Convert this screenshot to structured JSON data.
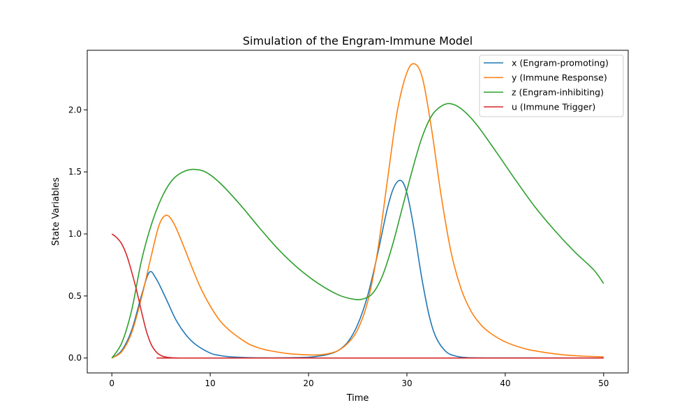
{
  "chart_data": {
    "type": "line",
    "title": "Simulation of the Engram-Immune Model",
    "xlabel": "Time",
    "ylabel": "State Variables",
    "xlim": [
      -2.5,
      52.5
    ],
    "ylim": [
      -0.12,
      2.48
    ],
    "xticks": [
      0,
      10,
      20,
      30,
      40,
      50
    ],
    "xtick_labels": [
      "0",
      "10",
      "20",
      "30",
      "40",
      "50"
    ],
    "yticks": [
      0.0,
      0.5,
      1.0,
      1.5,
      2.0
    ],
    "ytick_labels": [
      "0.0",
      "0.5",
      "1.0",
      "1.5",
      "2.0"
    ],
    "grid": false,
    "legend_position": "top-right",
    "series": [
      {
        "name": "x (Engram-promoting)",
        "color": "#1f77b4",
        "x": [
          0,
          1,
          2,
          3,
          3.8,
          4.5,
          5.5,
          6.5,
          7.5,
          8.5,
          10,
          11,
          12,
          14,
          16,
          18,
          20,
          21,
          22,
          23,
          24,
          25,
          26,
          27,
          28,
          28.7,
          29.4,
          30,
          30.7,
          31.5,
          32.3,
          33,
          34,
          35,
          36,
          38,
          50
        ],
        "y": [
          0.0,
          0.06,
          0.22,
          0.5,
          0.69,
          0.64,
          0.48,
          0.31,
          0.19,
          0.11,
          0.04,
          0.02,
          0.01,
          0.003,
          0.001,
          0.002,
          0.006,
          0.015,
          0.03,
          0.06,
          0.13,
          0.27,
          0.5,
          0.83,
          1.2,
          1.38,
          1.43,
          1.33,
          1.05,
          0.65,
          0.33,
          0.16,
          0.05,
          0.015,
          0.004,
          0.001,
          0.0
        ]
      },
      {
        "name": "y (Immune Response)",
        "color": "#ff7f0e",
        "x": [
          0,
          1,
          2,
          3,
          4,
          4.8,
          5.5,
          6.2,
          7,
          8,
          9,
          10,
          11,
          12,
          13,
          14,
          15,
          16,
          18,
          20,
          21,
          22,
          23,
          24,
          25,
          26,
          27,
          28,
          29,
          30,
          30.8,
          31.6,
          32.5,
          33.5,
          34.5,
          35.5,
          36.5,
          37.5,
          38.5,
          40,
          42,
          44,
          46,
          48,
          50
        ],
        "y": [
          0.0,
          0.05,
          0.2,
          0.48,
          0.82,
          1.07,
          1.15,
          1.1,
          0.96,
          0.76,
          0.57,
          0.42,
          0.3,
          0.22,
          0.16,
          0.11,
          0.08,
          0.06,
          0.035,
          0.025,
          0.025,
          0.035,
          0.06,
          0.12,
          0.23,
          0.45,
          0.85,
          1.42,
          1.98,
          2.3,
          2.37,
          2.25,
          1.85,
          1.3,
          0.85,
          0.56,
          0.38,
          0.27,
          0.2,
          0.13,
          0.075,
          0.045,
          0.025,
          0.015,
          0.01
        ]
      },
      {
        "name": "z (Engram-inhibiting)",
        "color": "#2ca02c",
        "x": [
          0,
          1,
          2,
          3,
          4,
          5,
          6,
          7,
          8.2,
          9.5,
          11,
          13,
          15,
          17,
          19,
          21,
          23,
          24.5,
          25.5,
          26.5,
          27.5,
          28.5,
          29.5,
          30.5,
          31.5,
          32.5,
          33.5,
          34.4,
          35.5,
          37,
          39,
          41,
          43,
          45,
          47,
          49,
          50
        ],
        "y": [
          0.0,
          0.12,
          0.38,
          0.78,
          1.07,
          1.28,
          1.42,
          1.49,
          1.52,
          1.5,
          1.41,
          1.24,
          1.05,
          0.87,
          0.72,
          0.6,
          0.51,
          0.475,
          0.475,
          0.52,
          0.66,
          0.9,
          1.2,
          1.5,
          1.77,
          1.95,
          2.03,
          2.05,
          2.01,
          1.89,
          1.67,
          1.44,
          1.22,
          1.03,
          0.86,
          0.71,
          0.6
        ]
      },
      {
        "name": "u (Immune Trigger)",
        "color": "#d62728",
        "x": [
          0,
          0.5,
          1,
          1.5,
          2,
          2.5,
          3,
          3.5,
          4,
          4.5,
          5,
          5.5,
          6,
          6.5,
          7,
          8,
          50
        ],
        "y": [
          1.0,
          0.97,
          0.92,
          0.83,
          0.7,
          0.55,
          0.38,
          0.22,
          0.11,
          0.05,
          0.02,
          0.008,
          0.003,
          0.001,
          0.0,
          0.0,
          0.0
        ]
      }
    ]
  }
}
